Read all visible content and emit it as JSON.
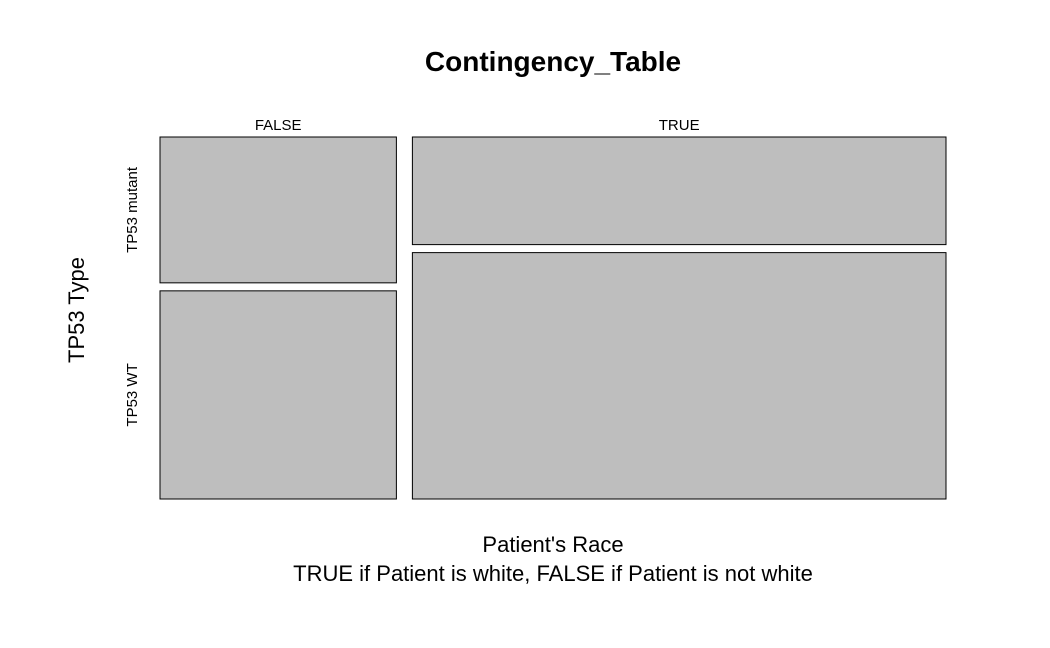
{
  "chart_data": {
    "type": "mosaic",
    "title": "Contingency_Table",
    "xlabel": "Patient's Race",
    "xlabel_line2": "TRUE if Patient is white, FALSE if Patient is not white",
    "ylabel": "TP53 Type",
    "x_categories": [
      "FALSE",
      "TRUE"
    ],
    "y_categories": [
      "TP53 mutant",
      "TP53 WT"
    ],
    "column_proportions": [
      0.307,
      0.693
    ],
    "row_proportions_within_column": [
      [
        0.412,
        0.588
      ],
      [
        0.304,
        0.696
      ]
    ],
    "cell_fill": "#bebebe",
    "cell_stroke": "#000000"
  }
}
